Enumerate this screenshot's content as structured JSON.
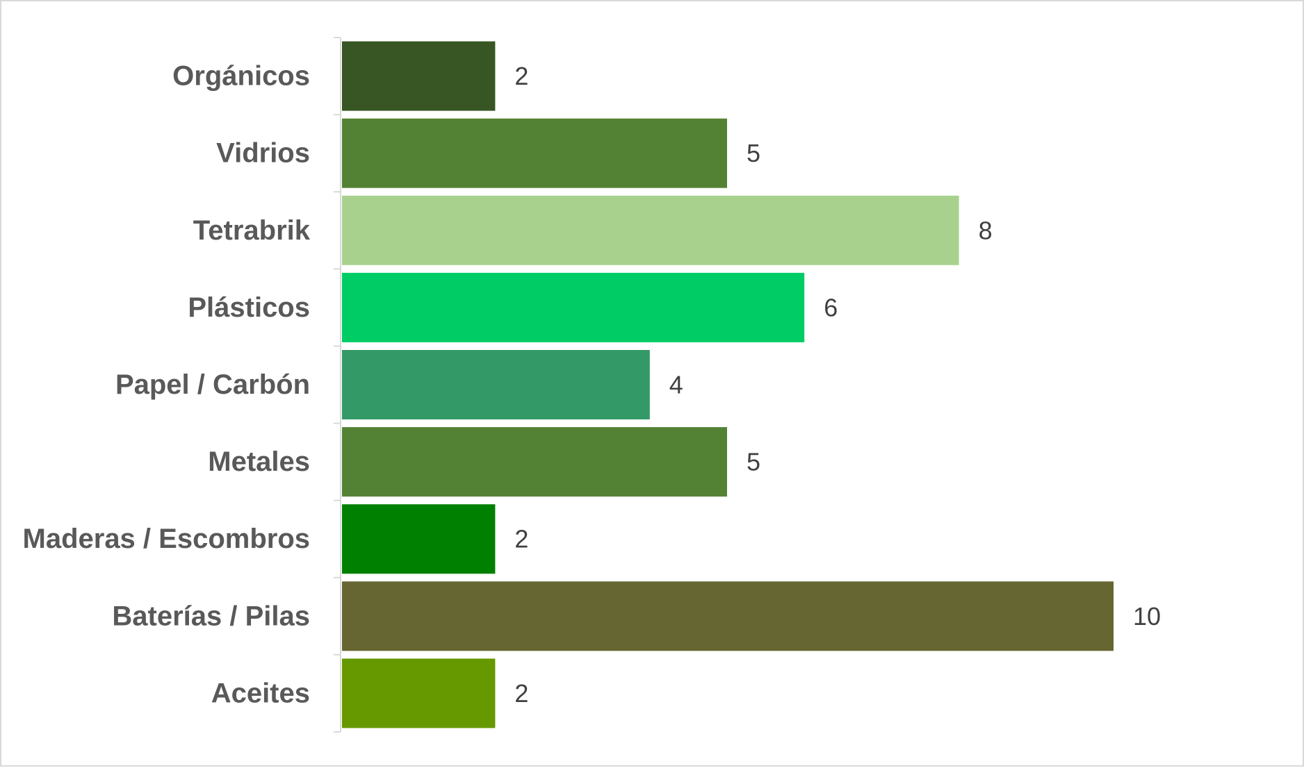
{
  "chart_data": {
    "type": "bar",
    "orientation": "horizontal",
    "categories": [
      "Orgánicos",
      "Vidrios",
      "Tetrabrik",
      "Plásticos",
      "Papel / Carbón",
      "Metales",
      "Maderas / Escombros",
      "Baterías / Pilas",
      "Aceites"
    ],
    "values": [
      2,
      5,
      8,
      6,
      4,
      5,
      2,
      10,
      2
    ],
    "colors": [
      "#375623",
      "#548235",
      "#a9d18e",
      "#00cc66",
      "#339966",
      "#548235",
      "#008000",
      "#666633",
      "#669900"
    ],
    "xlim": [
      0,
      10
    ],
    "data_labels": true,
    "grid": false,
    "legend": "none"
  }
}
